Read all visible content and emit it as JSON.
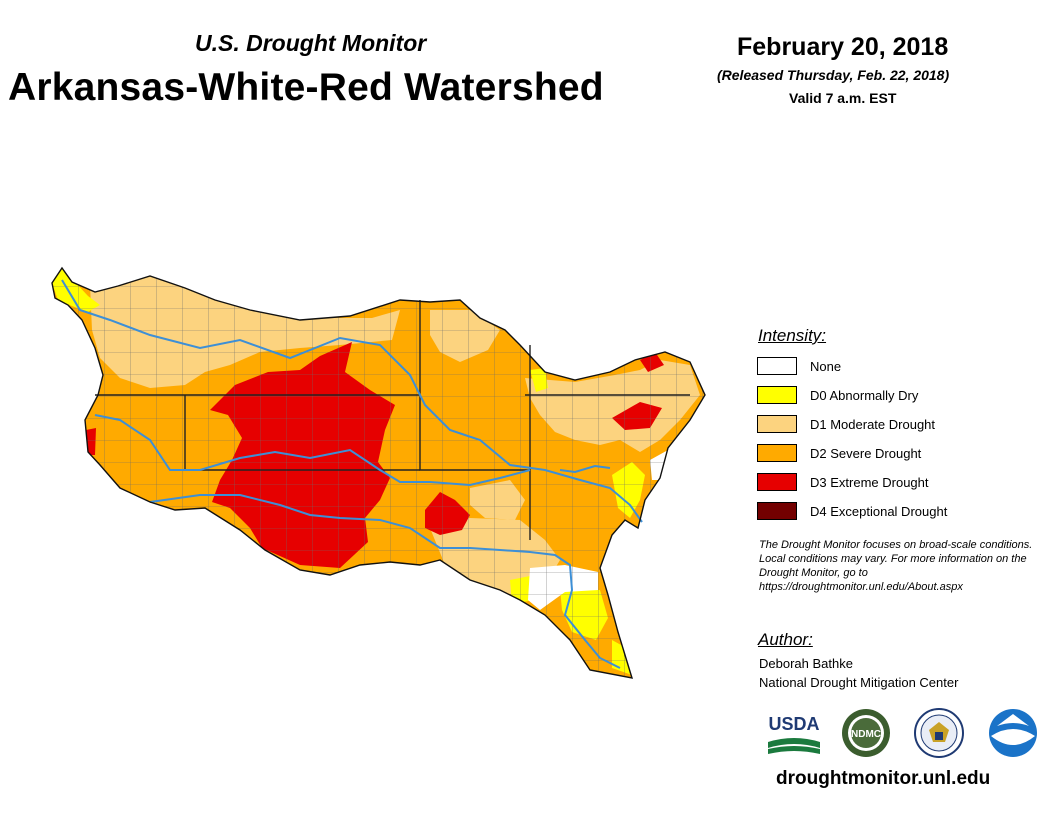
{
  "header": {
    "subtitle": "U.S. Drought Monitor",
    "title": "Arkansas-White-Red Watershed",
    "date": "February 20, 2018",
    "released": "(Released Thursday, Feb. 22, 2018)",
    "valid": "Valid 7 a.m. EST"
  },
  "legend": {
    "heading": "Intensity:",
    "items": [
      {
        "label": "None",
        "color": "#ffffff"
      },
      {
        "label": "D0 Abnormally Dry",
        "color": "#ffff00"
      },
      {
        "label": "D1 Moderate Drought",
        "color": "#fcd37f"
      },
      {
        "label": "D2 Severe Drought",
        "color": "#ffaa00"
      },
      {
        "label": "D3 Extreme Drought",
        "color": "#e60000"
      },
      {
        "label": "D4 Exceptional Drought",
        "color": "#730000"
      }
    ]
  },
  "note": "The Drought Monitor focuses on broad-scale conditions. Local conditions may vary. For more information on the Drought Monitor, go to https://droughtmonitor.unl.edu/About.aspx",
  "author": {
    "heading": "Author:",
    "name": "Deborah Bathke",
    "organization": "National Drought Mitigation Center"
  },
  "logos": {
    "usda": "USDA",
    "ndmc": "NDMC"
  },
  "website": "droughtmonitor.unl.edu",
  "colors": {
    "river": "#3d8fd6",
    "county_line": "#6b6b6b",
    "state_line": "#222222"
  }
}
